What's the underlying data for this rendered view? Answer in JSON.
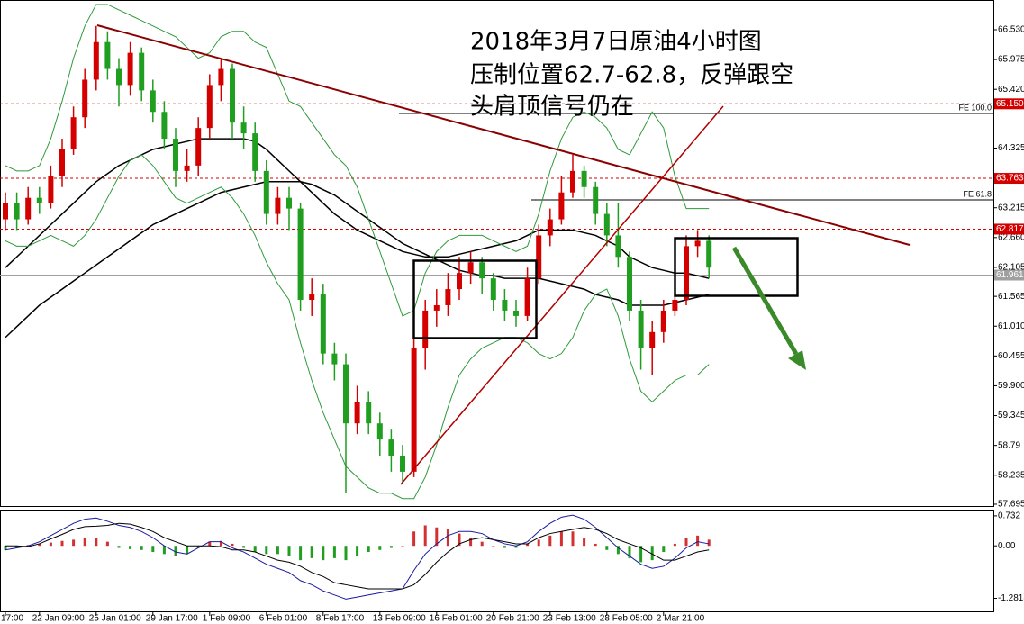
{
  "chart_data": [
    {
      "type": "candlestick",
      "title": [
        "2018年3月7日原油4小时图",
        "压制位置62.7-62.8，反弹跟空",
        "头肩顶信号仍在"
      ],
      "categories": [
        "17:00",
        null,
        null,
        "22 Jan 09:00",
        null,
        null,
        null,
        null,
        "25 Jan 01:00",
        null,
        null,
        null,
        null,
        "29 Jan 17:00",
        null,
        null,
        null,
        null,
        "1 Feb 09:00",
        null,
        null,
        null,
        null,
        "6 Feb 01:00",
        null,
        null,
        null,
        null,
        "8 Feb 17:00",
        null,
        null,
        null,
        null,
        "13 Feb 09:00",
        null,
        null,
        null,
        null,
        "16 Feb 01:00",
        null,
        null,
        null,
        null,
        "20 Feb 21:00",
        null,
        null,
        null,
        null,
        "23 Feb 13:00",
        null,
        null,
        null,
        null,
        "28 Feb 05:00",
        null,
        null,
        null,
        null,
        "2 Mar 21:00",
        null,
        null,
        null,
        null
      ],
      "open": [
        63.0,
        63.3,
        63.0,
        63.4,
        63.3,
        63.8,
        64.3,
        64.9,
        65.6,
        66.3,
        65.8,
        65.5,
        66.1,
        65.4,
        65.0,
        64.5,
        63.9,
        64.0,
        64.7,
        65.5,
        65.8,
        64.8,
        64.6,
        63.9,
        63.1,
        63.4,
        63.2,
        61.5,
        61.6,
        60.5,
        60.3,
        59.2,
        59.6,
        59.2,
        58.9,
        58.6,
        58.3,
        60.6,
        61.3,
        61.4,
        61.7,
        62.0,
        62.2,
        61.9,
        61.5,
        61.3,
        61.2,
        61.9,
        62.7,
        63.0,
        63.5,
        63.9,
        63.6,
        63.1,
        62.7,
        62.3,
        61.3,
        60.6,
        60.9,
        61.3,
        61.5,
        62.5,
        62.6
      ],
      "high": [
        63.5,
        63.5,
        63.6,
        63.6,
        64.0,
        64.5,
        65.1,
        65.8,
        66.6,
        66.5,
        66.0,
        66.3,
        66.2,
        65.6,
        65.2,
        64.7,
        64.3,
        64.9,
        65.7,
        66.0,
        65.9,
        65.1,
        64.8,
        64.1,
        63.6,
        63.6,
        63.3,
        61.9,
        61.8,
        60.7,
        60.5,
        59.9,
        59.8,
        59.4,
        59.1,
        58.8,
        60.9,
        61.5,
        61.7,
        62.0,
        62.3,
        62.4,
        62.3,
        62.0,
        61.7,
        61.5,
        62.1,
        62.9,
        63.2,
        63.8,
        64.2,
        64.0,
        63.7,
        63.3,
        63.3,
        62.4,
        61.5,
        61.1,
        61.5,
        61.7,
        62.7,
        62.8,
        62.7
      ],
      "low": [
        62.8,
        62.8,
        62.9,
        63.1,
        63.2,
        63.6,
        64.2,
        64.7,
        65.4,
        65.6,
        65.1,
        65.3,
        65.2,
        64.8,
        64.3,
        63.6,
        63.7,
        63.8,
        64.5,
        65.2,
        64.5,
        64.3,
        63.7,
        62.9,
        62.9,
        62.8,
        61.3,
        61.2,
        60.3,
        60.0,
        57.9,
        59.0,
        59.0,
        58.6,
        58.3,
        58.1,
        58.2,
        60.2,
        61.0,
        61.2,
        61.5,
        61.8,
        61.6,
        61.3,
        61.1,
        61.0,
        61.1,
        61.8,
        62.5,
        62.9,
        63.4,
        63.4,
        62.9,
        62.5,
        62.1,
        61.1,
        60.2,
        60.1,
        60.7,
        61.2,
        61.4,
        62.3,
        61.9
      ],
      "close": [
        63.3,
        63.0,
        63.4,
        63.3,
        63.8,
        64.3,
        64.9,
        65.6,
        66.3,
        65.8,
        65.5,
        66.1,
        65.4,
        65.0,
        64.5,
        63.9,
        64.0,
        64.7,
        65.5,
        65.8,
        64.8,
        64.6,
        63.9,
        63.1,
        63.4,
        63.2,
        61.5,
        61.6,
        60.5,
        60.3,
        59.2,
        59.6,
        59.2,
        58.9,
        58.6,
        58.3,
        60.6,
        61.3,
        61.4,
        61.7,
        62.0,
        62.2,
        61.9,
        61.5,
        61.3,
        61.2,
        61.9,
        62.7,
        63.0,
        63.5,
        63.9,
        63.6,
        63.1,
        62.7,
        62.3,
        61.3,
        60.6,
        60.9,
        61.3,
        61.5,
        62.5,
        62.6,
        62.1
      ],
      "up_color": "#d40000",
      "down_color": "#1f9e1f",
      "overlays": [
        {
          "color": "#000000",
          "values": [
            62.1,
            62.3,
            62.5,
            62.7,
            62.9,
            63.1,
            63.3,
            63.5,
            63.7,
            63.85,
            64.0,
            64.1,
            64.2,
            64.3,
            64.35,
            64.4,
            64.45,
            64.5,
            64.5,
            64.5,
            64.5,
            64.5,
            64.45,
            64.3,
            64.1,
            63.9,
            63.7,
            63.5,
            63.3,
            63.1,
            62.95,
            62.8,
            62.7,
            62.6,
            62.5,
            62.4,
            62.35,
            62.3,
            62.3,
            62.3,
            62.35,
            62.4,
            62.45,
            62.5,
            62.55,
            62.6,
            62.7,
            62.8,
            62.8,
            62.8,
            62.8,
            62.75,
            62.7,
            62.6,
            62.5,
            62.3,
            62.2,
            62.1,
            62.05,
            62.0,
            62.0,
            61.95,
            61.9
          ]
        },
        {
          "color": "#000000",
          "values": [
            60.8,
            61.0,
            61.2,
            61.4,
            61.55,
            61.7,
            61.85,
            62.0,
            62.15,
            62.3,
            62.45,
            62.6,
            62.75,
            62.9,
            63.0,
            63.1,
            63.2,
            63.3,
            63.4,
            63.5,
            63.55,
            63.6,
            63.65,
            63.7,
            63.7,
            63.7,
            63.7,
            63.65,
            63.55,
            63.45,
            63.3,
            63.15,
            63.0,
            62.85,
            62.7,
            62.55,
            62.45,
            62.35,
            62.25,
            62.15,
            62.05,
            62.0,
            61.95,
            61.95,
            61.9,
            61.9,
            61.9,
            61.9,
            61.85,
            61.8,
            61.75,
            61.7,
            61.6,
            61.55,
            61.5,
            61.4,
            61.4,
            61.4,
            61.4,
            61.45,
            61.5,
            61.55,
            61.6
          ]
        },
        {
          "color": "#2e9a3a",
          "values": [
            64.0,
            63.9,
            63.9,
            64.0,
            64.5,
            65.2,
            66.0,
            66.6,
            67.0,
            67.0,
            66.9,
            66.8,
            66.7,
            66.6,
            66.5,
            66.4,
            66.2,
            66.0,
            66.1,
            66.4,
            66.5,
            66.5,
            66.3,
            66.2,
            65.7,
            65.2,
            65.1,
            64.8,
            64.5,
            64.2,
            64.0,
            63.6,
            63.0,
            62.4,
            61.8,
            61.2,
            61.3,
            62.0,
            62.4,
            62.6,
            62.7,
            62.7,
            62.7,
            62.6,
            62.5,
            62.4,
            62.5,
            63.1,
            63.9,
            64.5,
            64.9,
            65.0,
            64.9,
            64.7,
            64.3,
            64.2,
            64.6,
            65.0,
            64.7,
            63.8,
            63.2,
            63.2,
            63.2
          ]
        },
        {
          "color": "#2e9a3a",
          "values": [
            62.6,
            62.5,
            62.5,
            62.6,
            62.7,
            62.6,
            62.5,
            62.7,
            63.0,
            63.4,
            63.8,
            64.1,
            64.2,
            64.0,
            63.7,
            63.4,
            63.3,
            63.4,
            63.5,
            63.6,
            63.4,
            63.1,
            62.7,
            62.2,
            61.8,
            61.5,
            60.7,
            60.0,
            59.4,
            58.9,
            58.4,
            58.2,
            58.0,
            57.9,
            57.9,
            57.8,
            57.8,
            58.2,
            58.8,
            59.5,
            60.1,
            60.4,
            60.6,
            60.7,
            60.8,
            60.8,
            60.7,
            60.5,
            60.4,
            60.5,
            60.8,
            61.3,
            61.6,
            61.7,
            61.2,
            60.4,
            59.8,
            59.6,
            59.8,
            60.0,
            60.1,
            60.1,
            60.3
          ]
        }
      ],
      "levels": [
        {
          "value": 65.15,
          "label": "65.150",
          "color": "#d40000"
        },
        {
          "value": 63.763,
          "label": "63.763",
          "color": "#d40000"
        },
        {
          "value": 62.817,
          "label": "62.817",
          "color": "#d40000"
        },
        {
          "value": 61.961,
          "label": "61.961",
          "color": "#a0a0a0"
        },
        {
          "value": 64.971,
          "label": "FE 100.0",
          "color": "#000000"
        },
        {
          "value": 63.361,
          "label": "FE 61.8",
          "color": "#000000"
        }
      ],
      "ylim": [
        57.661,
        67.083
      ],
      "yticks": [
        {
          "value": 66.53,
          "label": "66.530"
        },
        {
          "value": 65.975,
          "label": "65.975"
        },
        {
          "value": 65.42,
          "label": "65.420"
        },
        {
          "value": 64.325,
          "label": "64.325"
        },
        {
          "value": 63.215,
          "label": "63.215"
        },
        {
          "value": 62.66,
          "label": "62.660"
        },
        {
          "value": 62.105,
          "label": "62.105"
        },
        {
          "value": 61.565,
          "label": "61.565"
        },
        {
          "value": 61.01,
          "label": "61.010"
        },
        {
          "value": 60.455,
          "label": "60.455"
        },
        {
          "value": 59.9,
          "label": "59.900"
        },
        59.345,
        58.79,
        58.235,
        57.695
      ]
    },
    {
      "type": "macd",
      "histogram": {
        "up_color": "#d43030",
        "down_color": "#1f9e1f",
        "values": [
          -0.1,
          -0.05,
          0.02,
          0.05,
          0.08,
          0.12,
          0.15,
          0.18,
          0.2,
          0.1,
          -0.05,
          -0.08,
          -0.1,
          -0.15,
          -0.2,
          -0.25,
          -0.2,
          -0.05,
          0.1,
          0.12,
          0.05,
          -0.05,
          -0.15,
          -0.2,
          -0.2,
          -0.25,
          -0.35,
          -0.3,
          -0.35,
          -0.3,
          -0.35,
          -0.25,
          -0.15,
          -0.1,
          -0.05,
          0.0,
          0.35,
          0.5,
          0.45,
          0.4,
          0.3,
          0.2,
          0.1,
          0.0,
          -0.05,
          -0.05,
          0.05,
          0.15,
          0.25,
          0.35,
          0.35,
          0.2,
          0.05,
          -0.1,
          -0.2,
          -0.3,
          -0.4,
          -0.35,
          -0.15,
          0.05,
          0.2,
          0.25,
          0.15
        ]
      },
      "lines": [
        {
          "color": "#1a1aa0",
          "values": [
            -0.1,
            -0.05,
            0.0,
            0.1,
            0.25,
            0.4,
            0.55,
            0.65,
            0.68,
            0.6,
            0.5,
            0.45,
            0.35,
            0.2,
            0.0,
            -0.15,
            -0.2,
            -0.05,
            0.1,
            0.1,
            -0.05,
            -0.15,
            -0.3,
            -0.45,
            -0.55,
            -0.65,
            -0.85,
            -0.95,
            -1.1,
            -1.2,
            -1.3,
            -1.25,
            -1.2,
            -1.15,
            -1.1,
            -1.05,
            -0.6,
            -0.2,
            0.05,
            0.25,
            0.35,
            0.35,
            0.3,
            0.15,
            0.05,
            0.0,
            0.1,
            0.35,
            0.55,
            0.7,
            0.75,
            0.65,
            0.45,
            0.2,
            -0.05,
            -0.25,
            -0.45,
            -0.55,
            -0.5,
            -0.3,
            -0.05,
            0.1,
            0.05
          ]
        },
        {
          "color": "#000000",
          "values": [
            0.0,
            0.0,
            -0.02,
            0.05,
            0.17,
            0.28,
            0.4,
            0.47,
            0.48,
            0.5,
            0.55,
            0.53,
            0.45,
            0.35,
            0.2,
            0.1,
            0.0,
            0.0,
            0.0,
            -0.02,
            -0.1,
            -0.1,
            -0.15,
            -0.25,
            -0.35,
            -0.4,
            -0.5,
            -0.65,
            -0.75,
            -0.9,
            -0.95,
            -1.0,
            -1.05,
            -1.05,
            -1.05,
            -1.05,
            -0.95,
            -0.7,
            -0.4,
            -0.15,
            0.05,
            0.15,
            0.2,
            0.15,
            0.1,
            0.05,
            0.05,
            0.2,
            0.3,
            0.35,
            0.4,
            0.45,
            0.4,
            0.3,
            0.15,
            0.05,
            -0.05,
            -0.2,
            -0.35,
            -0.35,
            -0.25,
            -0.15,
            -0.1
          ]
        }
      ],
      "ylim": [
        -1.6,
        0.862
      ],
      "yticks": [
        {
          "value": 0.732,
          "label": "0.732"
        },
        {
          "value": 0,
          "label": "0.00"
        },
        {
          "value": -1.2818,
          "label": "-1.2818"
        }
      ]
    }
  ]
}
